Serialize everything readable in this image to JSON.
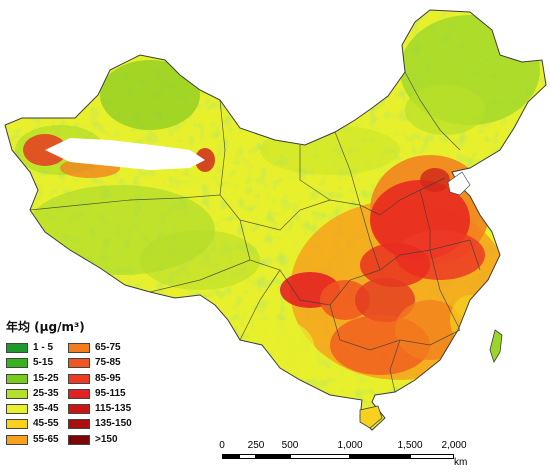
{
  "legend": {
    "title": "年均 (μg/m³)",
    "left": [
      {
        "label": "1 - 5",
        "color": "#1e9a2c"
      },
      {
        "label": "5-15",
        "color": "#37b21f"
      },
      {
        "label": "15-25",
        "color": "#77cc1e"
      },
      {
        "label": "25-35",
        "color": "#b5e02a"
      },
      {
        "label": "35-45",
        "color": "#e8f02c"
      },
      {
        "label": "45-55",
        "color": "#f7d11e"
      },
      {
        "label": "55-65",
        "color": "#f6a21c"
      }
    ],
    "right": [
      {
        "label": "65-75",
        "color": "#f37d1d"
      },
      {
        "label": "75-85",
        "color": "#f0561f"
      },
      {
        "label": "85-95",
        "color": "#ec3a26"
      },
      {
        "label": "95-115",
        "color": "#e22222"
      },
      {
        "label": "115-135",
        "color": "#c81616"
      },
      {
        "label": "135-150",
        "color": "#a90d0d"
      },
      {
        "label": ">150",
        "color": "#7d0606"
      }
    ]
  },
  "scale_bar": {
    "ticks": [
      "0",
      "250",
      "500",
      "1,000",
      "1,500",
      "2,000"
    ],
    "unit": "km"
  },
  "colors": {
    "land_base": "#e8f02c",
    "water": "#ffffff",
    "no_data": "#ffffff",
    "boundary": "#3d3d3d"
  }
}
